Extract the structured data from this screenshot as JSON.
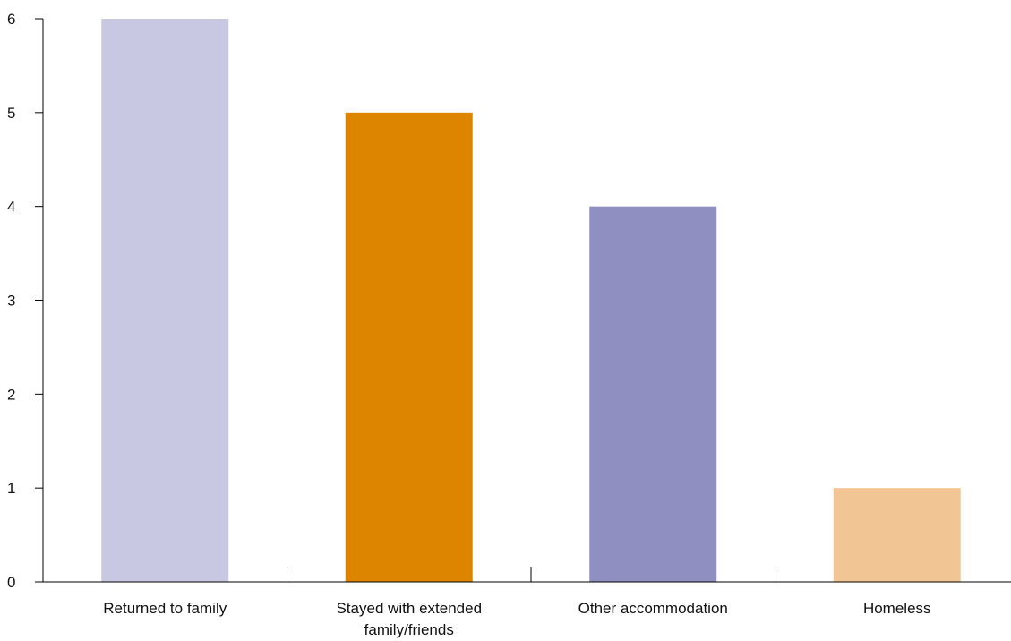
{
  "chart_data": {
    "type": "bar",
    "title": "",
    "xlabel": "",
    "ylabel": "",
    "categories": [
      [
        "Returned to family"
      ],
      [
        "Stayed with extended",
        "family/friends"
      ],
      [
        "Other accommodation"
      ],
      [
        "Homeless"
      ]
    ],
    "values": [
      6,
      5,
      4,
      1
    ],
    "colors": [
      "#c8c8e3",
      "#de8500",
      "#8f90c1",
      "#f2c694"
    ],
    "ylim": [
      0,
      6
    ],
    "yticks": [
      "0",
      "1",
      "2",
      "3",
      "4",
      "5",
      "6"
    ],
    "grid": false,
    "legend": "none"
  }
}
